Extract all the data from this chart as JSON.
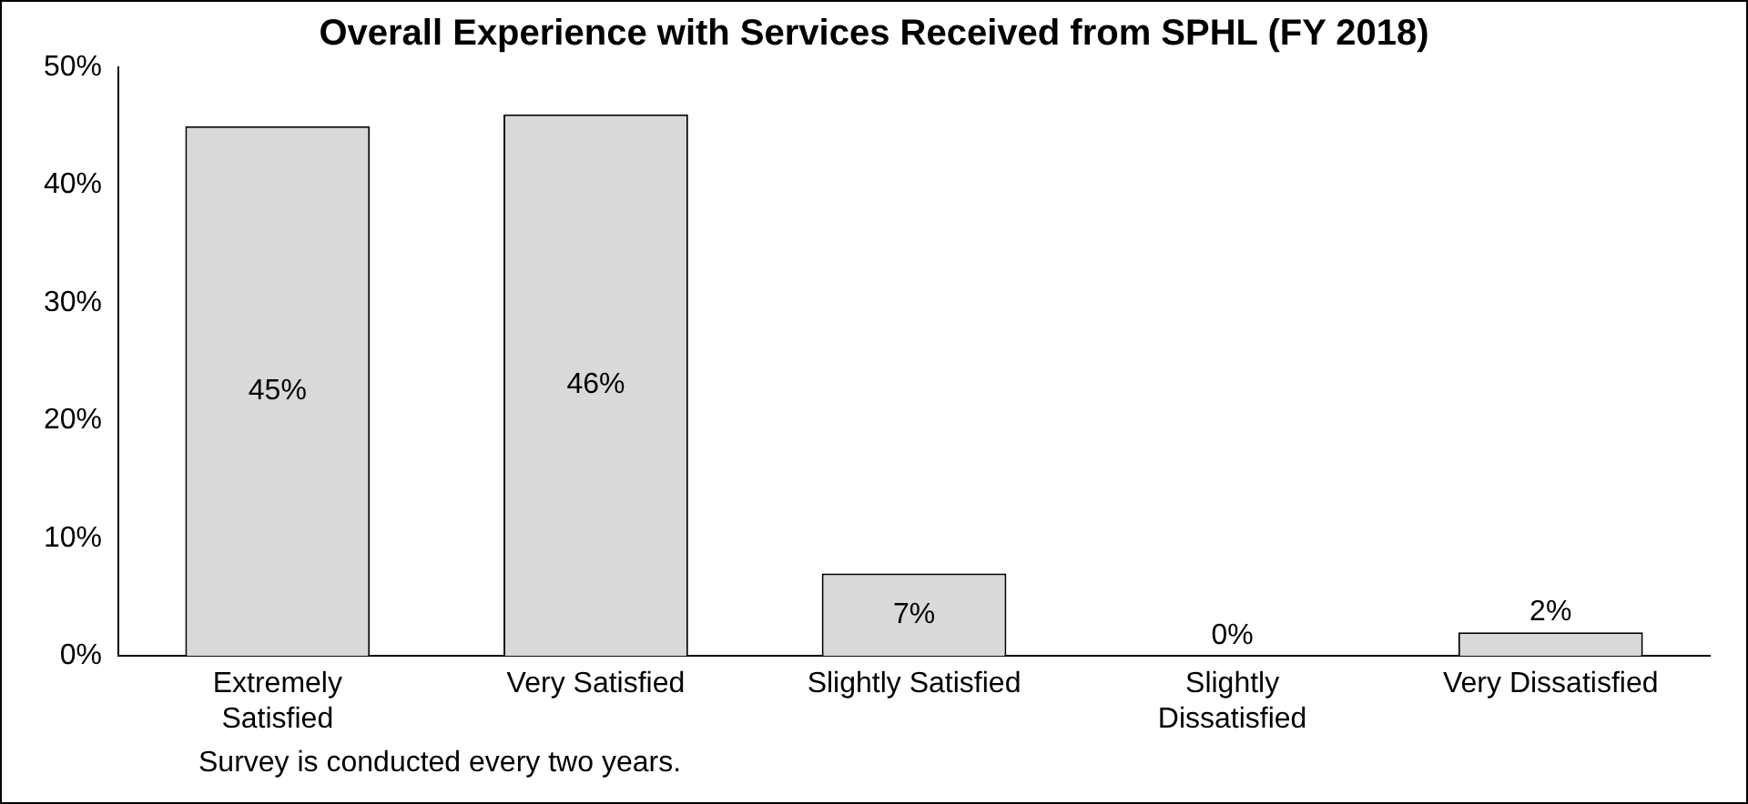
{
  "chart_data": {
    "type": "bar",
    "title": "Overall Experience with Services Received from SPHL (FY 2018)",
    "categories": [
      "Extremely\nSatisfied",
      "Very Satisfied",
      "Slightly Satisfied",
      "Slightly\nDissatisfied",
      "Very Dissatisfied"
    ],
    "values": [
      45,
      46,
      7,
      0,
      2
    ],
    "color": "#d9d9d9",
    "ylim": [
      0,
      50
    ],
    "yticks": [
      {
        "value": 0,
        "label": "0%"
      },
      {
        "value": 10,
        "label": "10%"
      },
      {
        "value": 20,
        "label": "20%"
      },
      {
        "value": 30,
        "label": "30%"
      },
      {
        "value": 40,
        "label": "40%"
      },
      {
        "value": 50,
        "label": "50%"
      }
    ],
    "value_labels": [
      "45%",
      "46%",
      "7%",
      "0%",
      "2%"
    ],
    "annotations": [
      "Survey is conducted every two years."
    ],
    "grid": false,
    "legend": false
  }
}
